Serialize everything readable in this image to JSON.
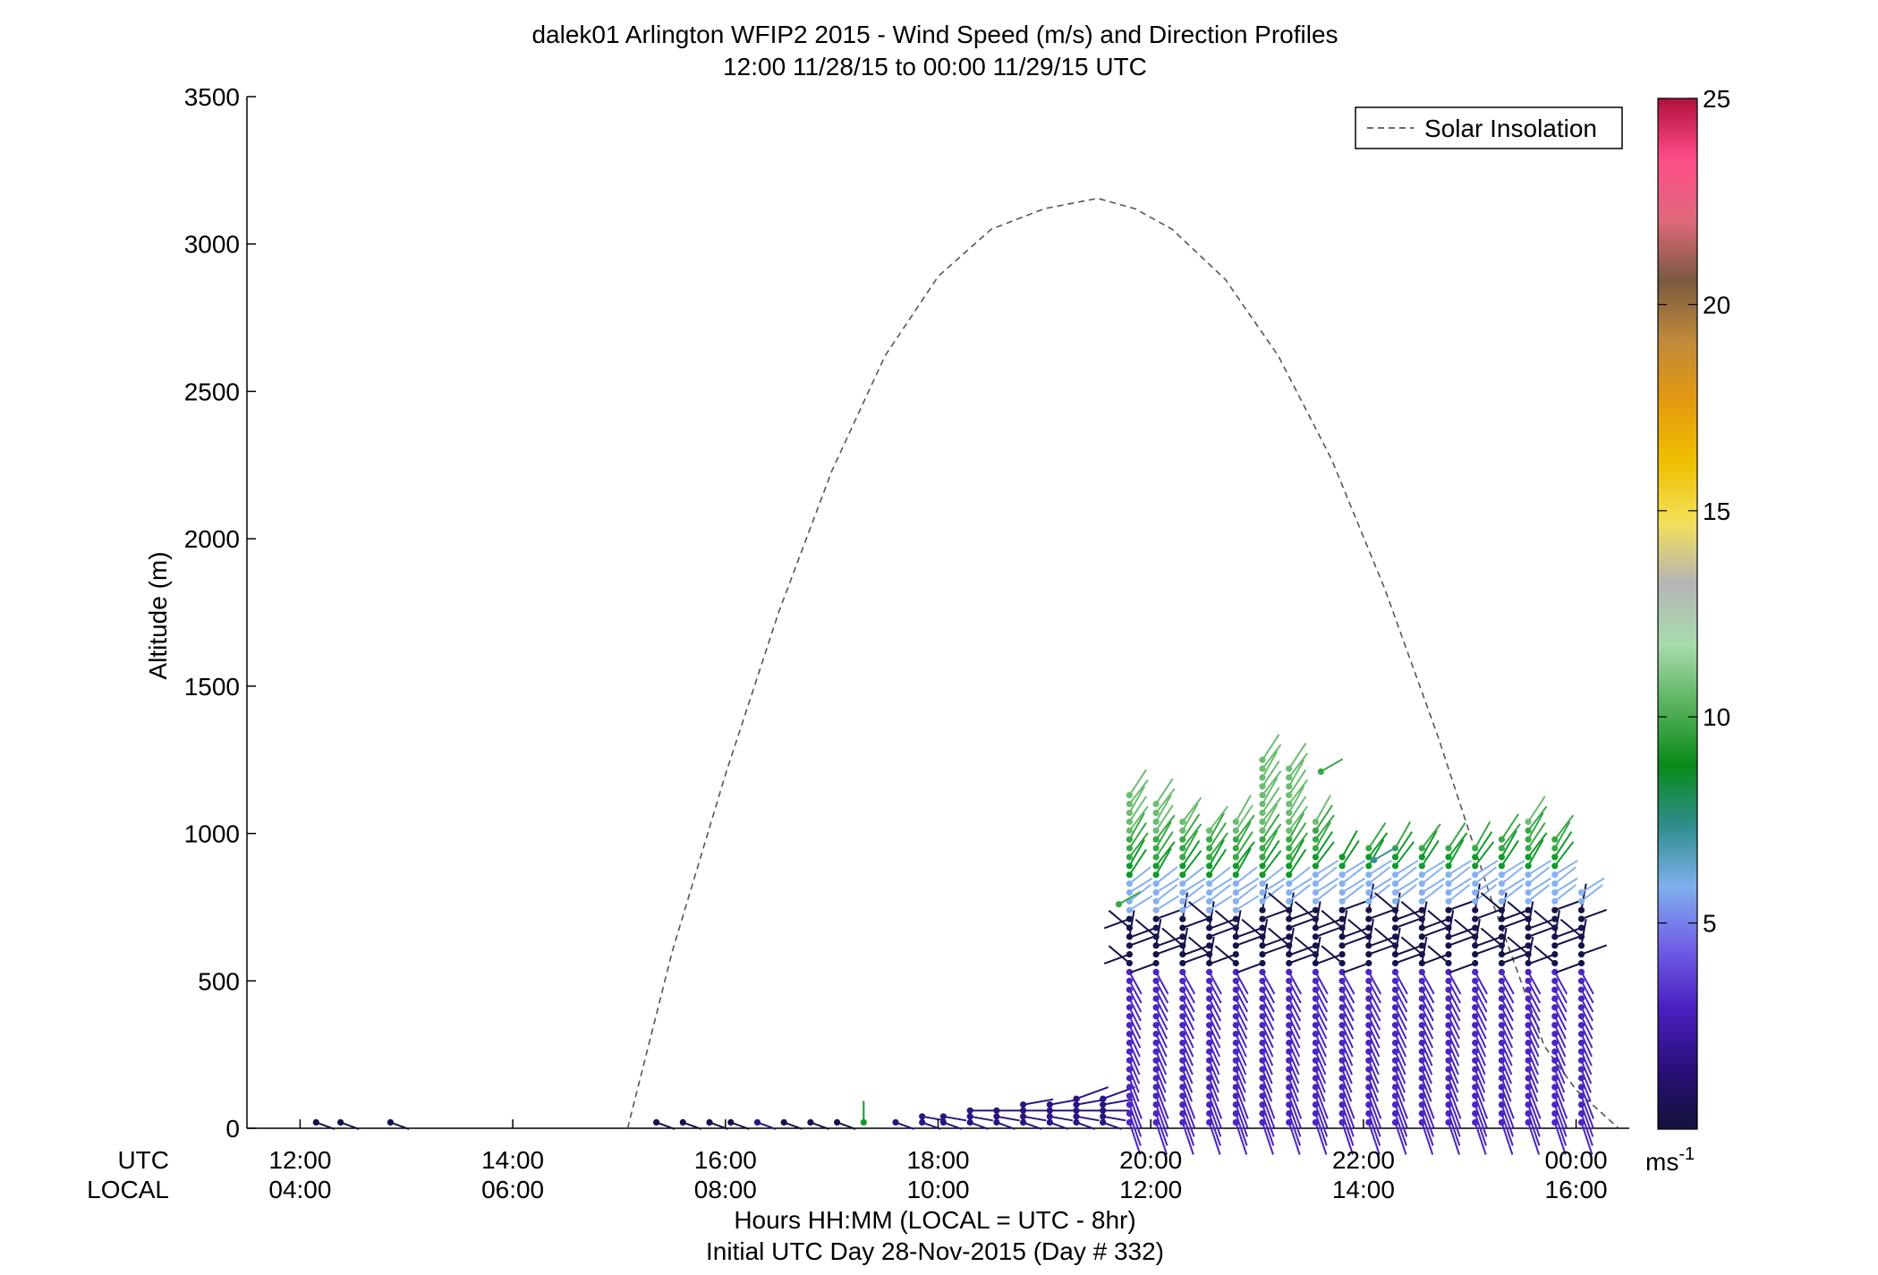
{
  "chart_data": {
    "type": "scatter",
    "title": "dalek01 Arlington WFIP2 2015 - Wind Speed (m/s) and Direction Profiles",
    "subtitle": "12:00 11/28/15 to 00:00 11/29/15  UTC",
    "ylabel": "Altitude (m)",
    "xlabel": "Hours HH:MM  (LOCAL = UTC - 8hr)",
    "xlabel2": "Initial UTC Day 28-Nov-2015 (Day # 332)",
    "row_label_utc": "UTC",
    "row_label_local": "LOCAL",
    "xlim_hours_utc": [
      11.5,
      24.5
    ],
    "ylim": [
      0,
      3500
    ],
    "yticks": [
      0,
      500,
      1000,
      1500,
      2000,
      2500,
      3000,
      3500
    ],
    "xticks_utc": [
      "12:00",
      "14:00",
      "16:00",
      "18:00",
      "20:00",
      "22:00",
      "00:00"
    ],
    "xticks_local": [
      "04:00",
      "06:00",
      "08:00",
      "10:00",
      "12:00",
      "14:00",
      "16:00"
    ],
    "xtick_hours_utc": [
      12,
      14,
      16,
      18,
      20,
      22,
      24
    ],
    "legend": {
      "label": "Solar Insolation",
      "placement": "top-right"
    },
    "colorbar": {
      "ticks": [
        5,
        10,
        15,
        20,
        25
      ],
      "range": [
        0,
        25
      ],
      "unit": "ms",
      "unit_exponent": "-1",
      "colors": [
        "#12123a",
        "#2a0f7a",
        "#4a1fc0",
        "#7060e6",
        "#7fb0ee",
        "#2e8d8d",
        "#0a8a1a",
        "#58b25c",
        "#a8dcae",
        "#b4b4b4",
        "#f2e05a",
        "#f0c000",
        "#e49a10",
        "#c08a3a",
        "#7a5a40",
        "#e0687c",
        "#ff4d88",
        "#b0103c"
      ]
    },
    "solar_insolation": {
      "hours_utc": [
        15.08,
        15.5,
        16.0,
        16.5,
        17.0,
        17.5,
        18.0,
        18.5,
        19.0,
        19.5,
        19.85,
        20.2,
        20.7,
        21.2,
        21.7,
        22.2,
        22.7,
        23.2,
        23.7,
        24.0,
        24.4
      ],
      "values": [
        0,
        600,
        1200,
        1750,
        2230,
        2620,
        2890,
        3050,
        3120,
        3155,
        3120,
        3050,
        2880,
        2620,
        2270,
        1830,
        1330,
        780,
        280,
        130,
        0
      ]
    },
    "profile_hours_utc": [
      19.8,
      20.05,
      20.3,
      20.55,
      20.8,
      21.05,
      21.3,
      21.55,
      21.8,
      22.05,
      22.3,
      22.55,
      22.8,
      23.05,
      23.3,
      23.55,
      23.8,
      24.05
    ],
    "profile_tops_m": [
      1130,
      1100,
      1050,
      1030,
      1050,
      1270,
      1240,
      1050,
      920,
      950,
      950,
      970,
      960,
      960,
      980,
      1040,
      990,
      800
    ],
    "profile_green_start_m": [
      860,
      860,
      860,
      860,
      860,
      860,
      860,
      870,
      870,
      870,
      870,
      870,
      870,
      870,
      870,
      870,
      870,
      9999
    ],
    "profile_lightblue_start_m": [
      740,
      740,
      740,
      740,
      740,
      750,
      750,
      750,
      750,
      750,
      750,
      750,
      750,
      750,
      750,
      750,
      750,
      750
    ],
    "profile_dark_start_m": [
      560,
      560,
      560,
      560,
      560,
      560,
      560,
      560,
      560,
      560,
      560,
      560,
      560,
      560,
      560,
      560,
      560,
      560
    ],
    "surface_obs": {
      "hours_utc": [
        12.15,
        12.38,
        12.85,
        15.35,
        15.6,
        15.85,
        16.05,
        16.3,
        16.55,
        16.8,
        17.05,
        17.3,
        17.6,
        17.85,
        18.05,
        18.3,
        18.55,
        18.8,
        19.05,
        19.3,
        19.55
      ],
      "altitudes_m": [
        [
          20
        ],
        [
          20
        ],
        [
          20
        ],
        [
          20
        ],
        [
          20
        ],
        [
          20
        ],
        [
          20
        ],
        [
          20
        ],
        [
          20
        ],
        [
          20
        ],
        [
          20
        ],
        [
          20
        ],
        [
          20
        ],
        [
          20,
          40
        ],
        [
          20,
          40
        ],
        [
          20,
          40,
          60
        ],
        [
          20,
          40,
          60
        ],
        [
          20,
          40,
          60,
          80
        ],
        [
          20,
          40,
          60,
          80
        ],
        [
          20,
          40,
          60,
          80,
          100
        ],
        [
          20,
          40,
          60,
          80,
          100
        ]
      ],
      "speed_ms": [
        1.0,
        1.0,
        1.0,
        1.0,
        1.0,
        1.0,
        1.0,
        1.5,
        1.0,
        1.0,
        1.0,
        7.5,
        1.5,
        1.5,
        1.5,
        1.5,
        1.5,
        2.0,
        2.0,
        2.0,
        2.0
      ]
    },
    "isolated_points": [
      {
        "hour_utc": 19.7,
        "altitude_m": 760,
        "speed_ms": 8.5
      },
      {
        "hour_utc": 21.6,
        "altitude_m": 1210,
        "speed_ms": 9.0
      },
      {
        "hour_utc": 22.1,
        "altitude_m": 910,
        "speed_ms": 6.0
      }
    ]
  }
}
